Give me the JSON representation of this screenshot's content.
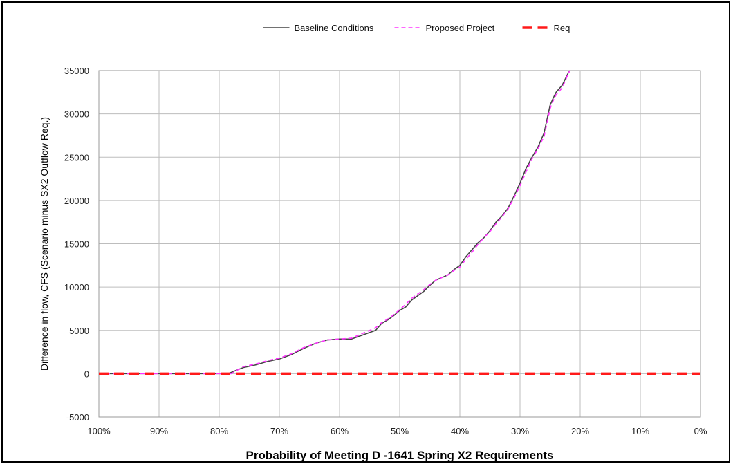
{
  "chart_data": {
    "type": "line",
    "title": "",
    "xlabel": "Probability of Meeting D -1641 Spring X2 Requirements",
    "ylabel": "Difference in flow, CFS (Scenario minus SX2 Outflow Req.)",
    "x_axis": {
      "reversed": true,
      "range": [
        100,
        0
      ],
      "ticks": [
        100,
        90,
        80,
        70,
        60,
        50,
        40,
        30,
        20,
        10,
        0
      ],
      "tick_labels": [
        "100%",
        "90%",
        "80%",
        "70%",
        "60%",
        "50%",
        "40%",
        "30%",
        "20%",
        "10%",
        "0%"
      ],
      "unit": "%"
    },
    "y_axis": {
      "range": [
        -5000,
        35000
      ],
      "ticks": [
        -5000,
        0,
        5000,
        10000,
        15000,
        20000,
        25000,
        30000,
        35000
      ],
      "tick_labels": [
        "-5000",
        "0",
        "5000",
        "10000",
        "15000",
        "20000",
        "25000",
        "30000",
        "35000"
      ]
    },
    "grid": true,
    "legend": {
      "position": "top-center"
    },
    "series": [
      {
        "name": "Baseline Conditions",
        "color": "#444444",
        "style": "solid",
        "x": [
          100,
          90,
          80,
          78.5,
          77.5,
          76,
          74,
          72,
          70,
          68,
          66,
          64,
          62,
          60,
          58,
          56,
          54,
          53,
          52,
          51,
          50,
          49,
          48,
          47,
          46,
          45,
          44,
          43,
          42,
          41,
          40,
          39,
          38,
          37,
          36,
          35,
          34,
          33,
          32,
          31,
          30,
          29,
          28,
          27,
          26,
          25,
          24.5,
          24,
          23,
          22.5,
          22,
          21.7
        ],
        "y": [
          0,
          0,
          0,
          0,
          300,
          700,
          1000,
          1400,
          1700,
          2200,
          2900,
          3500,
          3900,
          4000,
          4000,
          4500,
          5000,
          5800,
          6200,
          6700,
          7300,
          7700,
          8500,
          9000,
          9500,
          10200,
          10800,
          11100,
          11400,
          12000,
          12500,
          13500,
          14300,
          15100,
          15700,
          16500,
          17500,
          18200,
          19100,
          20500,
          22000,
          23700,
          25000,
          26200,
          27800,
          31000,
          31800,
          32500,
          33300,
          34000,
          34700,
          35000
        ]
      },
      {
        "name": "Proposed Project",
        "color": "#ff33ff",
        "style": "dashed",
        "x": [
          100,
          90,
          80,
          78,
          77,
          76,
          74,
          72,
          70,
          68,
          66,
          64,
          62,
          60,
          58,
          56,
          54,
          53,
          52,
          51,
          50,
          49,
          48,
          47,
          46,
          45,
          44,
          43,
          42,
          41,
          40,
          39,
          38,
          37,
          36,
          35,
          34,
          33,
          32,
          31,
          30,
          29,
          28,
          27,
          26,
          25,
          24.5,
          24,
          23,
          22.5,
          22,
          21.7
        ],
        "y": [
          0,
          0,
          0,
          0,
          400,
          800,
          1100,
          1500,
          1800,
          2300,
          3000,
          3500,
          3900,
          4000,
          4100,
          4700,
          5300,
          5900,
          6300,
          6800,
          7400,
          8000,
          8700,
          9200,
          9700,
          10300,
          10800,
          11100,
          11400,
          11900,
          12300,
          13200,
          14000,
          14900,
          15700,
          16400,
          17300,
          18100,
          19000,
          20300,
          21700,
          23300,
          24800,
          26000,
          27400,
          30600,
          31500,
          32200,
          33000,
          33800,
          34600,
          35000
        ]
      },
      {
        "name": "Req",
        "color": "#ff1a1a",
        "style": "dashed",
        "x": [
          100,
          0
        ],
        "y": [
          0,
          0
        ]
      }
    ]
  }
}
